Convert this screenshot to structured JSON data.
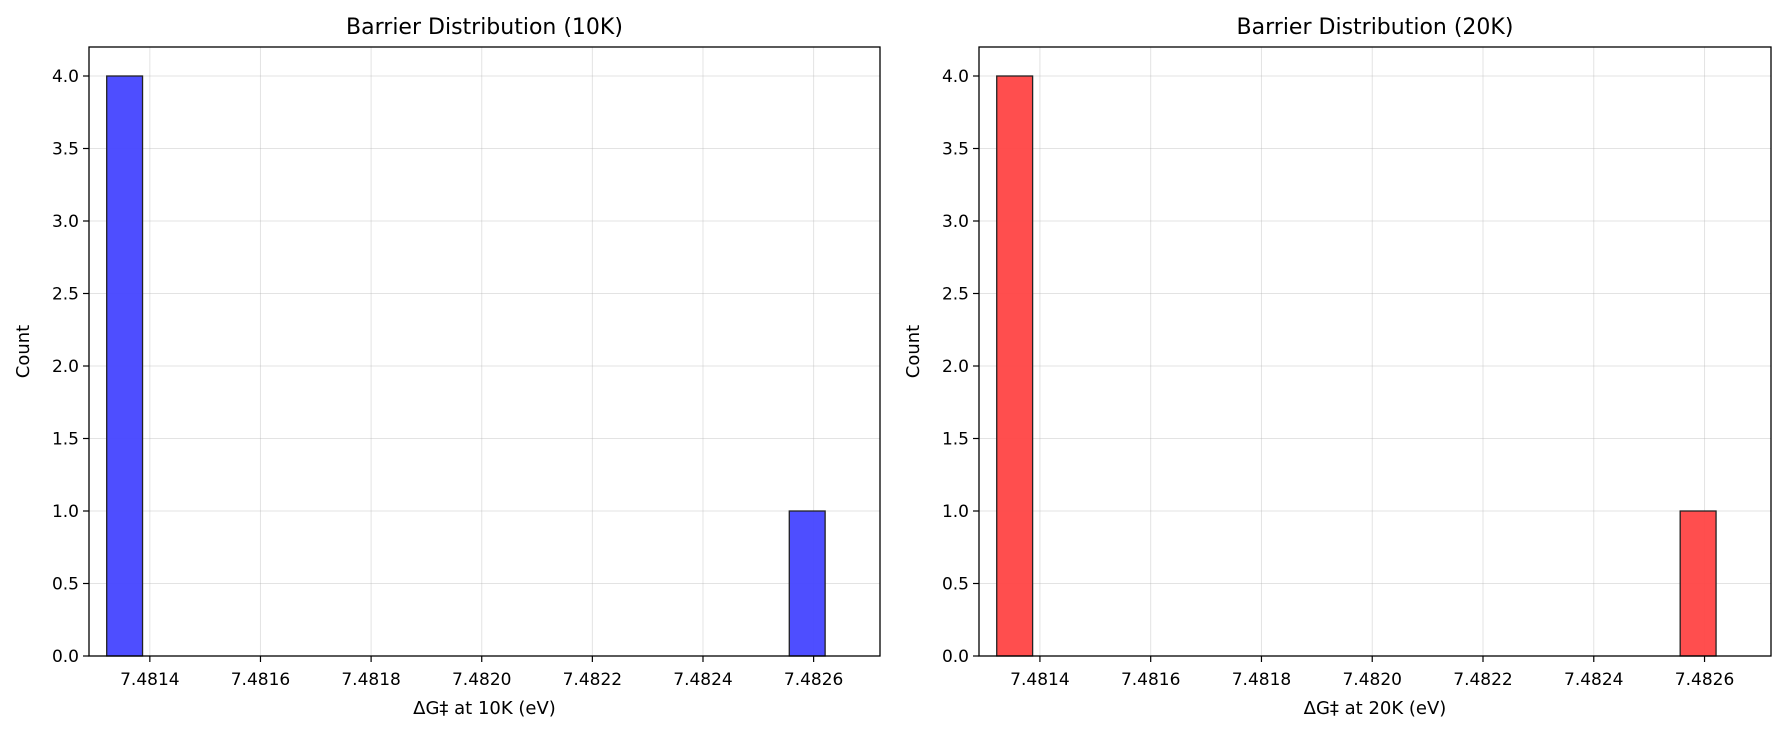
{
  "chart_data": [
    {
      "type": "bar",
      "title": "Barrier Distribution (10K)",
      "xlabel": "ΔG‡ at 10K (eV)",
      "ylabel": "Count",
      "xticks": [
        "7.4814",
        "7.4816",
        "7.4818",
        "7.4820",
        "7.4822",
        "7.4824",
        "7.4826"
      ],
      "yticks": [
        "0.0",
        "0.5",
        "1.0",
        "1.5",
        "2.0",
        "2.5",
        "3.0",
        "3.5",
        "4.0"
      ],
      "xlim": [
        7.48129,
        7.48272
      ],
      "ylim": [
        0,
        4.2
      ],
      "bin_width": 6.48e-05,
      "bins": [
        {
          "start": 7.481322,
          "count": 4
        },
        {
          "start": 7.482556,
          "count": 1
        }
      ],
      "color": "#4444ff",
      "grid": true
    },
    {
      "type": "bar",
      "title": "Barrier Distribution (20K)",
      "xlabel": "ΔG‡ at 20K (eV)",
      "ylabel": "Count",
      "xticks": [
        "7.4814",
        "7.4816",
        "7.4818",
        "7.4820",
        "7.4822",
        "7.4824",
        "7.4826"
      ],
      "yticks": [
        "0.0",
        "0.5",
        "1.0",
        "1.5",
        "2.0",
        "2.5",
        "3.0",
        "3.5",
        "4.0"
      ],
      "xlim": [
        7.48129,
        7.48272
      ],
      "ylim": [
        0,
        4.2
      ],
      "bin_width": 6.48e-05,
      "bins": [
        {
          "start": 7.481322,
          "count": 4
        },
        {
          "start": 7.482556,
          "count": 1
        }
      ],
      "color": "#ff4444",
      "grid": true
    }
  ]
}
